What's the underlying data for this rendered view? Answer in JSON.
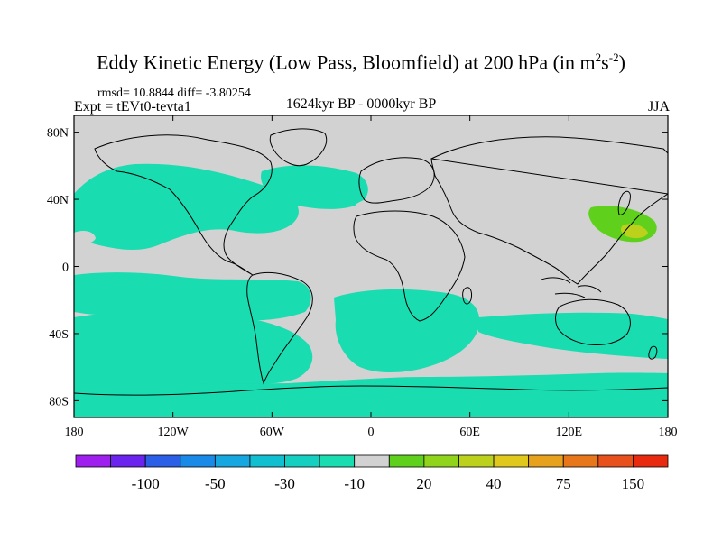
{
  "title": {
    "main": "Eddy Kinetic Energy (Low Pass, Bloomfield) at 200 hPa (in m",
    "sup1": "2",
    "mid": "s",
    "sup2": "-2",
    "end": ")"
  },
  "stats_line": "rmsd= 10.8844 diff= -3.80254",
  "expt_line": "Expt = tEVt0-tevta1",
  "period_line": "1624kyr BP - 0000kyr BP",
  "season": "JJA",
  "chart_data": {
    "type": "heatmap",
    "title": "Eddy Kinetic Energy (Low Pass, Bloomfield) at 200 hPa (in m^2 s^-2)",
    "x_ticks": [
      "180",
      "120W",
      "60W",
      "0",
      "60E",
      "120E",
      "180"
    ],
    "y_ticks": [
      "80N",
      "40N",
      "0",
      "40S",
      "80S"
    ],
    "xlim": [
      -180,
      180
    ],
    "ylim": [
      -90,
      90
    ],
    "colorbar": {
      "levels": [
        -150,
        -100,
        -75,
        -50,
        -40,
        -30,
        -20,
        -10,
        10,
        20,
        30,
        40,
        50,
        75,
        100,
        150
      ],
      "labels": [
        "-100",
        "-50",
        "-30",
        "-10",
        "20",
        "40",
        "75",
        "150"
      ],
      "colors": [
        "#9f1fef",
        "#6b23ee",
        "#2b5fe8",
        "#1a8ae8",
        "#17a7e0",
        "#10bfd0",
        "#15cfc1",
        "#19dcb0",
        "#d2d2d2",
        "#5fd11c",
        "#90d41c",
        "#bcd11c",
        "#e0c81c",
        "#e8a11c",
        "#e8771c",
        "#e8501c",
        "#e82a10"
      ]
    },
    "regions": [
      {
        "name": "north-pacific-east",
        "level": -10
      },
      {
        "name": "north-atlantic",
        "level": -10
      },
      {
        "name": "tropical-pacific",
        "level": -10
      },
      {
        "name": "south-pacific",
        "level": -10
      },
      {
        "name": "south-atlantic",
        "level": -10
      },
      {
        "name": "south-indian",
        "level": -10
      },
      {
        "name": "southern-ocean-australia",
        "level": -20
      },
      {
        "name": "antarctic-belt",
        "level": -10
      },
      {
        "name": "mediterranean",
        "level": 10
      },
      {
        "name": "siberia",
        "level": 10
      },
      {
        "name": "north-pacific-west",
        "level": 20
      },
      {
        "name": "east-asia-core",
        "level": 40
      }
    ]
  }
}
